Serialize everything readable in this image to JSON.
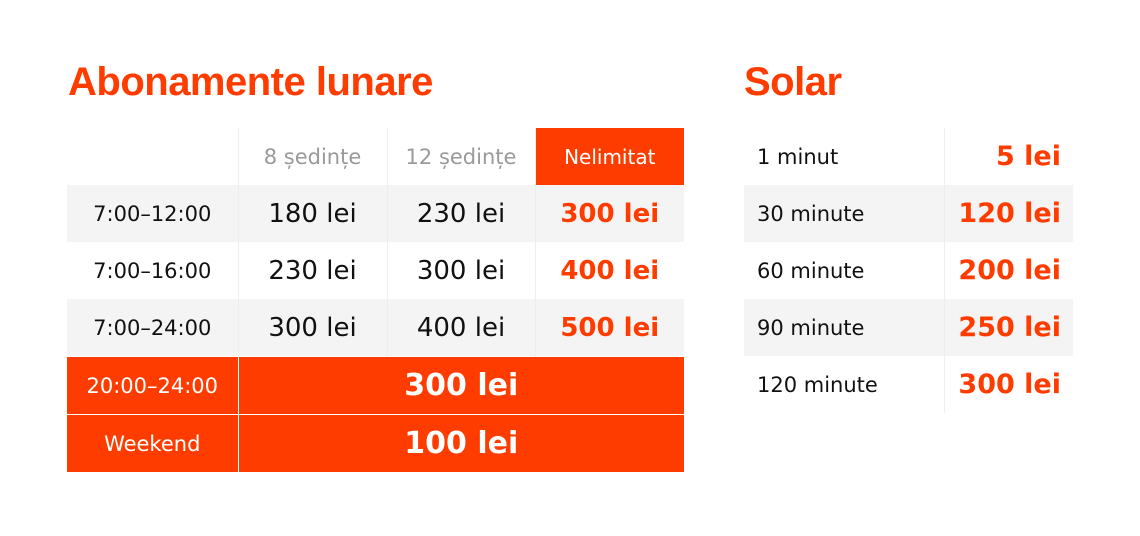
{
  "subscriptions": {
    "title": "Abonamente lunare",
    "headers": [
      "",
      "8 ședințe",
      "12 ședințe",
      "Nelimitat"
    ],
    "rows": [
      {
        "time": "7:00–12:00",
        "prices": [
          "180 lei",
          "230 lei",
          "300 lei"
        ]
      },
      {
        "time": "7:00–16:00",
        "prices": [
          "230 lei",
          "300 lei",
          "400 lei"
        ]
      },
      {
        "time": "7:00–24:00",
        "prices": [
          "300 lei",
          "400 lei",
          "500 lei"
        ]
      }
    ],
    "special": [
      {
        "time": "20:00–24:00",
        "price": "300 lei"
      },
      {
        "time": "Weekend",
        "price": "100 lei"
      }
    ]
  },
  "solar": {
    "title": "Solar",
    "rows": [
      {
        "duration": "1 minut",
        "price": "5 lei"
      },
      {
        "duration": "30 minute",
        "price": "120 lei"
      },
      {
        "duration": "60 minute",
        "price": "200 lei"
      },
      {
        "duration": "90 minute",
        "price": "250 lei"
      },
      {
        "duration": "120 minute",
        "price": "300 lei"
      }
    ]
  },
  "colors": {
    "accent": "#ff3c00",
    "row_grey": "#f4f4f4",
    "header_grey_text": "#9a9a9a"
  }
}
